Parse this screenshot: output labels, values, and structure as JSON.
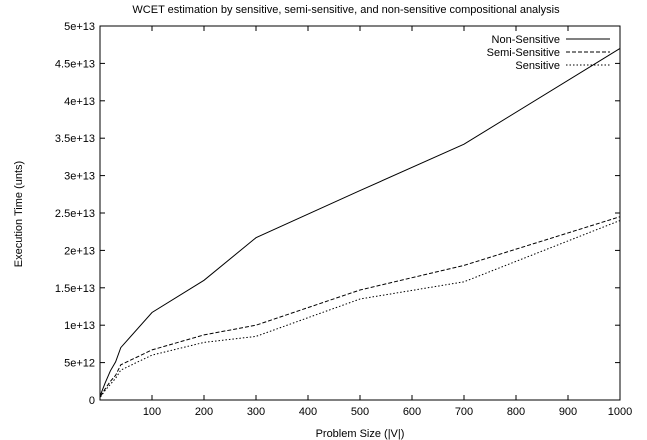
{
  "chart_data": {
    "type": "line",
    "title": "WCET estimation by sensitive, semi-sensitive, and non-sensitive compositional analysis",
    "xlabel": "Problem Size (|V|)",
    "ylabel": "Execution Time (unts)",
    "xlim": [
      0,
      1000
    ],
    "ylim": [
      0,
      50000000000000
    ],
    "xticks": [
      100,
      200,
      300,
      400,
      500,
      600,
      700,
      800,
      900,
      1000
    ],
    "xtick_labels": [
      "100",
      "200",
      "300",
      "400",
      "500",
      "600",
      "700",
      "800",
      "900",
      "1000"
    ],
    "yticks": [
      0,
      5000000000000,
      10000000000000,
      15000000000000,
      20000000000000,
      25000000000000,
      30000000000000,
      35000000000000,
      40000000000000,
      45000000000000,
      50000000000000
    ],
    "ytick_labels": [
      "0",
      "5e+12",
      "1e+13",
      "1.5e+13",
      "2e+13",
      "2.5e+13",
      "3e+13",
      "3.5e+13",
      "4e+13",
      "4.5e+13",
      "5e+13"
    ],
    "grid": false,
    "legend_position": "top-right",
    "x": [
      1,
      10,
      20,
      30,
      40,
      100,
      200,
      300,
      500,
      700,
      1000
    ],
    "series": [
      {
        "name": "Non-Sensitive",
        "dash": "solid",
        "color": "#000000",
        "values": [
          700000000000,
          2300000000000,
          3900000000000,
          5100000000000,
          7000000000000,
          11700000000000,
          16000000000000,
          21700000000000,
          28000000000000,
          34200000000000,
          47000000000000
        ]
      },
      {
        "name": "Semi-Sensitive",
        "dash": "dashed",
        "color": "#000000",
        "values": [
          500000000000,
          1500000000000,
          2500000000000,
          3300000000000,
          4700000000000,
          6700000000000,
          8700000000000,
          10000000000000,
          14700000000000,
          18000000000000,
          24500000000000
        ]
      },
      {
        "name": "Sensitive",
        "dash": "dotted",
        "color": "#000000",
        "values": [
          400000000000,
          1300000000000,
          2100000000000,
          2900000000000,
          4000000000000,
          6000000000000,
          7700000000000,
          8500000000000,
          13500000000000,
          15800000000000,
          24000000000000
        ]
      }
    ]
  }
}
